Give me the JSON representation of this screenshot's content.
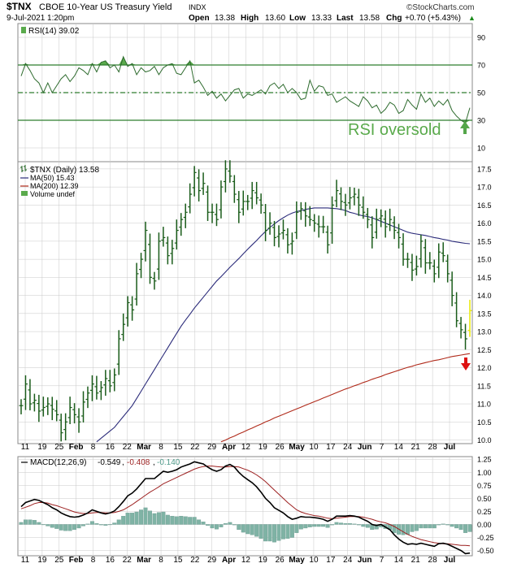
{
  "header": {
    "symbol": "$TNX",
    "name": "CBOE 10-Year US Treasury Yield",
    "exchange": "INDX",
    "date_time": "9-Jul-2021 1:20pm",
    "open_label": "Open",
    "open": "13.38",
    "high_label": "High",
    "high": "13.60",
    "low_label": "Low",
    "low": "13.33",
    "last_label": "Last",
    "last": "13.58",
    "chg_label": "Chg",
    "chg": "+0.70 (+5.43%)",
    "chg_marker": "▲",
    "brand": "©StockCharts.com"
  },
  "colors": {
    "price_bar": "#1a5c1a",
    "rsi_line": "#2e6b2e",
    "rsi_fill": "#5aaa4c",
    "ma50": "#2b2b7a",
    "ma200": "#b02a1a",
    "macd": "#000000",
    "signal": "#9c1f1f",
    "histogram": "#7fb3a5",
    "up_arrow": "#55a64a",
    "down_arrow": "#dd1111",
    "grid": "#c8c8c8",
    "level_line": "#2e7d2e",
    "last_bar": "#e8e800"
  },
  "icons": {
    "price_legend": "bar-chart-icon",
    "up_arrow": "up-arrow-icon",
    "down_arrow": "down-arrow-icon"
  },
  "rsi_panel": {
    "legend": "RSI(14) 39.02",
    "annotation": "RSI oversold",
    "levels": [
      70,
      50,
      30
    ],
    "ticks": [
      90,
      70,
      50,
      30,
      10
    ]
  },
  "price_panel": {
    "legend_title": "$TNX (Daily) 13.58",
    "legend_ma50": "MA(50) 15.43",
    "legend_ma200": "MA(200) 12.39",
    "legend_volume": "Volume undef",
    "ticks": [
      "17.5",
      "17.0",
      "16.5",
      "16.0",
      "15.5",
      "15.0",
      "14.5",
      "14.0",
      "13.5",
      "13.0",
      "12.5",
      "12.0",
      "11.5",
      "11.0",
      "10.5",
      "10.0"
    ]
  },
  "macd_panel": {
    "legend_prefix": "MACD(12,26,9)",
    "macd_value": "-0.549",
    "signal_value": "-0.408",
    "hist_value": "-0.140",
    "ticks": [
      "1.25",
      "1.00",
      "0.75",
      "0.50",
      "0.25",
      "0.00",
      "-0.25",
      "-0.50"
    ]
  },
  "x_axis": {
    "labels": [
      {
        "t": "11",
        "bold": false
      },
      {
        "t": "19",
        "bold": false
      },
      {
        "t": "25",
        "bold": false
      },
      {
        "t": "Feb",
        "bold": true
      },
      {
        "t": "8",
        "bold": false
      },
      {
        "t": "16",
        "bold": false
      },
      {
        "t": "22",
        "bold": false
      },
      {
        "t": "Mar",
        "bold": true
      },
      {
        "t": "8",
        "bold": false
      },
      {
        "t": "15",
        "bold": false
      },
      {
        "t": "22",
        "bold": false
      },
      {
        "t": "29",
        "bold": false
      },
      {
        "t": "Apr",
        "bold": true
      },
      {
        "t": "12",
        "bold": false
      },
      {
        "t": "19",
        "bold": false
      },
      {
        "t": "26",
        "bold": false
      },
      {
        "t": "May",
        "bold": true
      },
      {
        "t": "10",
        "bold": false
      },
      {
        "t": "17",
        "bold": false
      },
      {
        "t": "24",
        "bold": false
      },
      {
        "t": "Jun",
        "bold": true
      },
      {
        "t": "7",
        "bold": false
      },
      {
        "t": "14",
        "bold": false
      },
      {
        "t": "21",
        "bold": false
      },
      {
        "t": "28",
        "bold": false
      },
      {
        "t": "Jul",
        "bold": true
      }
    ]
  },
  "chart_data": [
    {
      "type": "line",
      "panel": "rsi",
      "ylim": [
        0,
        100
      ],
      "series": [
        {
          "name": "RSI(14)",
          "values": [
            62,
            71,
            66,
            60,
            57,
            50,
            57,
            50,
            55,
            60,
            63,
            58,
            62,
            68,
            66,
            63,
            71,
            65,
            72,
            73,
            68,
            70,
            65,
            76,
            69,
            71,
            63,
            68,
            65,
            66,
            69,
            63,
            68,
            70,
            71,
            64,
            63,
            68,
            73,
            57,
            59,
            54,
            48,
            51,
            46,
            49,
            44,
            48,
            52,
            53,
            46,
            49,
            48,
            50,
            52,
            49,
            55,
            57,
            53,
            56,
            50,
            53,
            50,
            45,
            46,
            59,
            51,
            55,
            54,
            48,
            49,
            43,
            45,
            47,
            44,
            42,
            40,
            47,
            44,
            39,
            41,
            35,
            38,
            43,
            41,
            35,
            37,
            45,
            41,
            38,
            49,
            43,
            46,
            40,
            44,
            41,
            45,
            37,
            33,
            30,
            28,
            39.02
          ]
        }
      ]
    },
    {
      "type": "bar",
      "panel": "price",
      "ylim": [
        9.9,
        17.7
      ],
      "series": [
        {
          "name": "$TNX (Daily)",
          "close": [
            10.95,
            11.55,
            11.0,
            11.1,
            10.8,
            10.9,
            11.0,
            10.85,
            10.7,
            10.2,
            10.5,
            10.9,
            10.7,
            10.5,
            11.05,
            11.3,
            11.55,
            11.3,
            11.45,
            11.7,
            11.5,
            11.8,
            12.8,
            13.2,
            13.8,
            13.6,
            14.6,
            15.0,
            15.8,
            14.5,
            14.4,
            15.5,
            15.6,
            15.1,
            15.3,
            15.8,
            16.1,
            16.3,
            16.8,
            17.4,
            16.9,
            17.1,
            16.3,
            16.3,
            16.1,
            17.0,
            17.5,
            17.3,
            16.8,
            16.3,
            16.6,
            16.6,
            16.9,
            16.7,
            16.5,
            15.8,
            16.0,
            15.6,
            15.7,
            15.8,
            15.4,
            15.5,
            16.3,
            16.4,
            16.2,
            16.1,
            16.0,
            15.9,
            15.9,
            15.4,
            16.5,
            16.9,
            16.6,
            16.5,
            16.7,
            16.8,
            16.5,
            16.3,
            16.1,
            15.6,
            16.1,
            16.2,
            15.9,
            16.1,
            15.8,
            15.6,
            15.0,
            15.0,
            14.7,
            14.8,
            15.5,
            14.9,
            14.9,
            14.6,
            15.2,
            15.1,
            14.6,
            14.0,
            13.3,
            13.05,
            12.8,
            13.58
          ]
        },
        {
          "name": "MA(50)",
          "values": [
            null,
            null,
            null,
            null,
            null,
            null,
            null,
            null,
            null,
            null,
            null,
            null,
            null,
            null,
            null,
            null,
            null,
            9.95,
            10.05,
            10.15,
            10.25,
            10.35,
            10.5,
            10.65,
            10.8,
            10.95,
            11.15,
            11.35,
            11.55,
            11.75,
            11.95,
            12.15,
            12.35,
            12.55,
            12.75,
            12.95,
            13.15,
            13.32,
            13.48,
            13.65,
            13.8,
            13.95,
            14.1,
            14.25,
            14.4,
            14.52,
            14.65,
            14.78,
            14.9,
            15.02,
            15.15,
            15.28,
            15.4,
            15.52,
            15.65,
            15.77,
            15.88,
            15.98,
            16.07,
            16.15,
            16.22,
            16.28,
            16.32,
            16.35,
            16.38,
            16.4,
            16.42,
            16.42,
            16.42,
            16.42,
            16.41,
            16.4,
            16.38,
            16.35,
            16.3,
            16.27,
            16.23,
            16.2,
            16.18,
            16.15,
            16.1,
            16.05,
            16.0,
            15.95,
            15.9,
            15.85,
            15.8,
            15.75,
            15.72,
            15.7,
            15.68,
            15.66,
            15.63,
            15.6,
            15.58,
            15.55,
            15.53,
            15.5,
            15.48,
            15.46,
            15.44,
            15.43
          ]
        },
        {
          "name": "MA(200)",
          "values": [
            null,
            null,
            null,
            null,
            null,
            null,
            null,
            null,
            null,
            null,
            null,
            null,
            null,
            null,
            null,
            null,
            null,
            null,
            null,
            null,
            null,
            null,
            null,
            null,
            null,
            null,
            null,
            null,
            null,
            null,
            null,
            null,
            null,
            null,
            null,
            null,
            null,
            null,
            null,
            null,
            null,
            null,
            null,
            null,
            null,
            9.95,
            10.0,
            10.06,
            10.11,
            10.17,
            10.22,
            10.28,
            10.33,
            10.39,
            10.44,
            10.5,
            10.55,
            10.61,
            10.66,
            10.71,
            10.76,
            10.81,
            10.86,
            10.91,
            10.96,
            11.01,
            11.06,
            11.11,
            11.16,
            11.21,
            11.26,
            11.31,
            11.36,
            11.41,
            11.45,
            11.5,
            11.54,
            11.59,
            11.63,
            11.68,
            11.72,
            11.76,
            11.81,
            11.85,
            11.89,
            11.93,
            11.97,
            12.01,
            12.04,
            12.08,
            12.11,
            12.14,
            12.17,
            12.2,
            12.22,
            12.25,
            12.28,
            12.31,
            12.33,
            12.35,
            12.37,
            12.39
          ]
        }
      ]
    },
    {
      "type": "line",
      "panel": "macd",
      "ylim": [
        -0.6,
        1.3
      ],
      "series": [
        {
          "name": "MACD(12,26,9)",
          "values": [
            0.34,
            0.42,
            0.45,
            0.48,
            0.46,
            0.42,
            0.38,
            0.32,
            0.28,
            0.22,
            0.18,
            0.15,
            0.14,
            0.15,
            0.18,
            0.22,
            0.28,
            0.25,
            0.22,
            0.2,
            0.22,
            0.26,
            0.34,
            0.44,
            0.55,
            0.6,
            0.68,
            0.78,
            0.88,
            0.88,
            0.88,
            0.95,
            1.02,
            1.0,
            1.02,
            1.05,
            1.1,
            1.13,
            1.16,
            1.2,
            1.18,
            1.16,
            1.1,
            1.05,
            1.02,
            1.05,
            1.12,
            1.15,
            1.1,
            1.0,
            0.92,
            0.86,
            0.8,
            0.72,
            0.62,
            0.5,
            0.42,
            0.32,
            0.27,
            0.22,
            0.15,
            0.1,
            0.12,
            0.15,
            0.14,
            0.14,
            0.13,
            0.12,
            0.1,
            0.06,
            0.1,
            0.16,
            0.16,
            0.16,
            0.17,
            0.16,
            0.14,
            0.1,
            0.06,
            0.0,
            -0.02,
            0.0,
            -0.05,
            -0.1,
            -0.2,
            -0.28,
            -0.34,
            -0.38,
            -0.37,
            -0.38,
            -0.36,
            -0.38,
            -0.4,
            -0.42,
            -0.37,
            -0.36,
            -0.38,
            -0.42,
            -0.46,
            -0.5,
            -0.56,
            -0.549
          ]
        },
        {
          "name": "Signal",
          "values": [
            0.3,
            0.33,
            0.36,
            0.4,
            0.42,
            0.42,
            0.41,
            0.38,
            0.36,
            0.33,
            0.3,
            0.27,
            0.24,
            0.22,
            0.21,
            0.21,
            0.22,
            0.23,
            0.23,
            0.22,
            0.22,
            0.23,
            0.25,
            0.28,
            0.33,
            0.38,
            0.44,
            0.5,
            0.56,
            0.62,
            0.67,
            0.72,
            0.78,
            0.82,
            0.86,
            0.9,
            0.94,
            0.98,
            1.02,
            1.06,
            1.09,
            1.11,
            1.12,
            1.12,
            1.11,
            1.1,
            1.1,
            1.11,
            1.11,
            1.1,
            1.07,
            1.04,
            1.0,
            0.95,
            0.89,
            0.82,
            0.74,
            0.66,
            0.58,
            0.5,
            0.42,
            0.35,
            0.28,
            0.24,
            0.21,
            0.19,
            0.17,
            0.16,
            0.14,
            0.12,
            0.11,
            0.12,
            0.13,
            0.14,
            0.15,
            0.15,
            0.15,
            0.14,
            0.12,
            0.1,
            0.07,
            0.05,
            0.03,
            0.0,
            -0.04,
            -0.09,
            -0.14,
            -0.19,
            -0.23,
            -0.26,
            -0.29,
            -0.31,
            -0.33,
            -0.35,
            -0.36,
            -0.37,
            -0.37,
            -0.38,
            -0.39,
            -0.4,
            -0.4,
            -0.408
          ]
        },
        {
          "name": "Histogram",
          "values": [
            0.04,
            0.09,
            0.09,
            0.08,
            0.04,
            0.0,
            -0.03,
            -0.06,
            -0.08,
            -0.11,
            -0.12,
            -0.12,
            -0.1,
            -0.07,
            -0.03,
            0.01,
            0.06,
            0.02,
            -0.01,
            -0.02,
            0.0,
            0.03,
            0.09,
            0.16,
            0.22,
            0.22,
            0.24,
            0.28,
            0.32,
            0.26,
            0.21,
            0.23,
            0.24,
            0.18,
            0.16,
            0.15,
            0.16,
            0.15,
            0.14,
            0.14,
            0.09,
            0.05,
            -0.02,
            -0.07,
            -0.09,
            -0.05,
            0.02,
            0.04,
            -0.01,
            -0.1,
            -0.15,
            -0.18,
            -0.2,
            -0.23,
            -0.27,
            -0.32,
            -0.32,
            -0.34,
            -0.31,
            -0.28,
            -0.27,
            -0.25,
            -0.16,
            -0.09,
            -0.07,
            -0.05,
            -0.04,
            -0.04,
            -0.04,
            -0.06,
            -0.01,
            0.04,
            0.03,
            0.02,
            0.02,
            0.01,
            -0.01,
            -0.04,
            -0.06,
            -0.1,
            -0.09,
            -0.05,
            -0.08,
            -0.1,
            -0.16,
            -0.19,
            -0.2,
            -0.19,
            -0.14,
            -0.12,
            -0.07,
            -0.07,
            -0.07,
            -0.07,
            -0.01,
            0.01,
            -0.01,
            -0.04,
            -0.07,
            -0.1,
            -0.16,
            -0.14
          ]
        }
      ]
    }
  ]
}
